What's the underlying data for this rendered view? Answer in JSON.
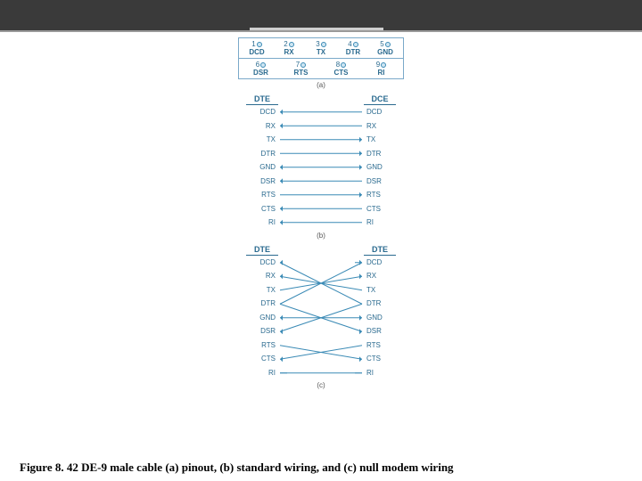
{
  "colors": {
    "header_bg": "#3a3a3a",
    "line": "#3a8ab5",
    "label": "#2a6a8f",
    "box_border": "#7aa9c9",
    "bg": "#ffffff"
  },
  "caption": "Figure 8. 42 DE-9 male cable (a) pinout, (b) standard wiring, and (c) null modem wiring",
  "pinout": {
    "sublabel": "(a)",
    "top_row": [
      {
        "num": "1",
        "label": "DCD"
      },
      {
        "num": "2",
        "label": "RX"
      },
      {
        "num": "3",
        "label": "TX"
      },
      {
        "num": "4",
        "label": "DTR"
      },
      {
        "num": "5",
        "label": "GND"
      }
    ],
    "bottom_row": [
      {
        "num": "6",
        "label": "DSR"
      },
      {
        "num": "7",
        "label": "RTS"
      },
      {
        "num": "8",
        "label": "CTS"
      },
      {
        "num": "9",
        "label": "RI"
      }
    ]
  },
  "wiring_b": {
    "sublabel": "(b)",
    "left_header": "DTE",
    "right_header": "DCE",
    "signals": [
      "DCD",
      "RX",
      "TX",
      "DTR",
      "GND",
      "DSR",
      "RTS",
      "CTS",
      "RI"
    ],
    "connections": [
      {
        "from": 0,
        "to": 0,
        "dir": "toL"
      },
      {
        "from": 1,
        "to": 1,
        "dir": "toL"
      },
      {
        "from": 2,
        "to": 2,
        "dir": "toR"
      },
      {
        "from": 3,
        "to": 3,
        "dir": "toR"
      },
      {
        "from": 4,
        "to": 4,
        "dir": "both"
      },
      {
        "from": 5,
        "to": 5,
        "dir": "toL"
      },
      {
        "from": 6,
        "to": 6,
        "dir": "toR"
      },
      {
        "from": 7,
        "to": 7,
        "dir": "toL"
      },
      {
        "from": 8,
        "to": 8,
        "dir": "toL"
      }
    ]
  },
  "wiring_c": {
    "sublabel": "(c)",
    "left_header": "DTE",
    "right_header": "DTE",
    "signals": [
      "DCD",
      "RX",
      "TX",
      "DTR",
      "GND",
      "DSR",
      "RTS",
      "CTS",
      "RI"
    ],
    "connections": [
      {
        "from": 0,
        "to": 3,
        "dir": "toL"
      },
      {
        "from": 3,
        "to": 0,
        "dir": "toR"
      },
      {
        "from": 1,
        "to": 2,
        "dir": "toL"
      },
      {
        "from": 2,
        "to": 1,
        "dir": "toR"
      },
      {
        "from": 3,
        "to": 5,
        "dir": "toR"
      },
      {
        "from": 5,
        "to": 3,
        "dir": "toL"
      },
      {
        "from": 4,
        "to": 4,
        "dir": "both"
      },
      {
        "from": 6,
        "to": 7,
        "dir": "toR"
      },
      {
        "from": 7,
        "to": 6,
        "dir": "toL"
      },
      {
        "from": 8,
        "to": 8,
        "dir": "none"
      }
    ],
    "free_right": [
      0,
      8
    ],
    "free_left": [
      8
    ]
  }
}
